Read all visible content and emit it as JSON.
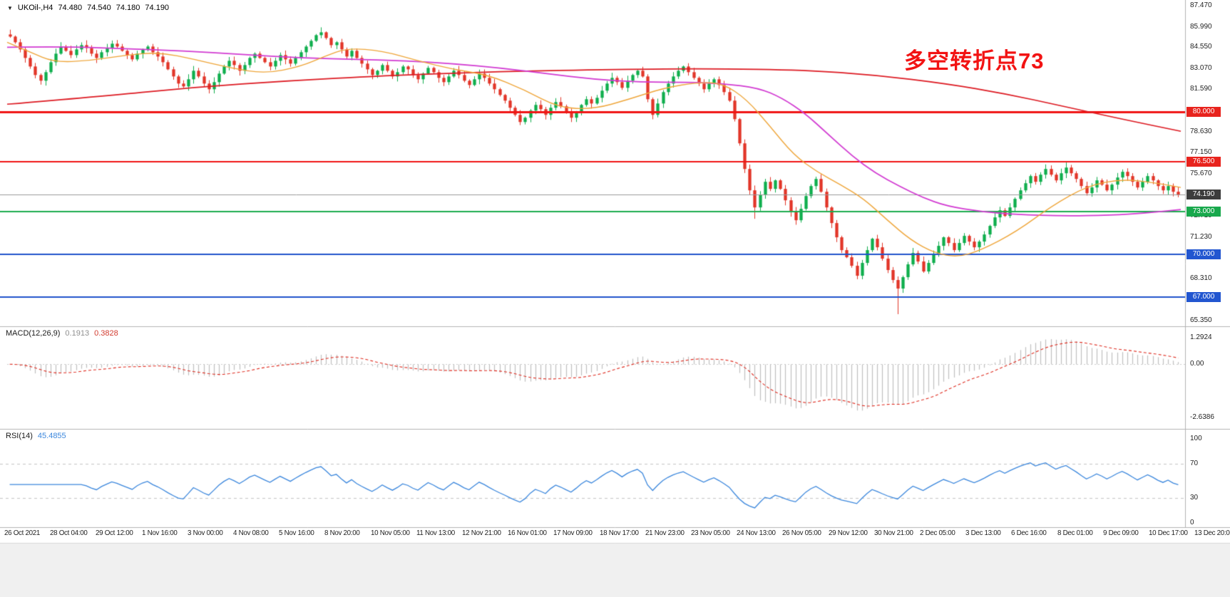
{
  "symbol_bar": {
    "symbol": "UKOil-,H4",
    "open": "74.480",
    "high": "74.540",
    "low": "74.180",
    "close": "74.190"
  },
  "annotation": {
    "text": "多空转折点73",
    "color": "#f21313"
  },
  "colors": {
    "bull": "#0fae4d",
    "bear": "#e23528",
    "ma_slow": "#dd1a22",
    "ma_mid": "#d23bd2",
    "ma_fast": "#efa63a",
    "macd_hist": "#c0c0c0",
    "macd_signal": "#df2b1f",
    "rsi_line": "#3b87dd"
  },
  "price_axis": {
    "ticks": [
      {
        "label": "87.470",
        "value": 87.47
      },
      {
        "label": "85.990",
        "value": 85.99
      },
      {
        "label": "84.550",
        "value": 84.55
      },
      {
        "label": "83.070",
        "value": 83.07
      },
      {
        "label": "81.590",
        "value": 81.59
      },
      {
        "label": "78.630",
        "value": 78.63
      },
      {
        "label": "77.150",
        "value": 77.15
      },
      {
        "label": "75.670",
        "value": 75.67
      },
      {
        "label": "72.710",
        "value": 72.71
      },
      {
        "label": "71.230",
        "value": 71.23
      },
      {
        "label": "69.750",
        "value": 69.75
      },
      {
        "label": "68.310",
        "value": 68.31
      },
      {
        "label": "65.350",
        "value": 65.35
      }
    ],
    "badges": [
      {
        "label": "80.000",
        "value": 80.0,
        "bg": "#e8231d"
      },
      {
        "label": "76.500",
        "value": 76.5,
        "bg": "#e8231d"
      },
      {
        "label": "74.190",
        "value": 74.19,
        "bg": "#3c3c3c"
      },
      {
        "label": "73.000",
        "value": 73.0,
        "bg": "#18a84c"
      },
      {
        "label": "70.000",
        "value": 70.0,
        "bg": "#2256d0"
      },
      {
        "label": "67.000",
        "value": 67.0,
        "bg": "#2256d0"
      }
    ]
  },
  "macd_panel": {
    "label": "MACD(12,26,9)",
    "value_main": "0.1913",
    "value_signal": "0.3828",
    "scale": [
      {
        "label": "1.2924",
        "value": 1.2924
      },
      {
        "label": "0.00",
        "value": 0
      },
      {
        "label": "-2.6386",
        "value": -2.6386
      }
    ]
  },
  "rsi_panel": {
    "label": "RSI(14)",
    "value": "45.4855",
    "scale": [
      {
        "label": "100",
        "value": 100
      },
      {
        "label": "70",
        "value": 70
      },
      {
        "label": "30",
        "value": 30
      },
      {
        "label": "0",
        "value": 0
      }
    ]
  },
  "time_axis": {
    "labels": [
      "26 Oct 2021",
      "28 Oct 04:00",
      "29 Oct 12:00",
      "1 Nov 16:00",
      "3 Nov 00:00",
      "4 Nov 08:00",
      "5 Nov 16:00",
      "8 Nov 20:00",
      "10 Nov 05:00",
      "11 Nov 13:00",
      "12 Nov 21:00",
      "16 Nov 01:00",
      "17 Nov 09:00",
      "18 Nov 17:00",
      "21 Nov 23:00",
      "23 Nov 05:00",
      "24 Nov 13:00",
      "26 Nov 05:00",
      "29 Nov 12:00",
      "30 Nov 21:00",
      "2 Dec 05:00",
      "3 Dec 13:00",
      "6 Dec 16:00",
      "8 Dec 01:00",
      "9 Dec 09:00",
      "10 Dec 17:00",
      "13 Dec 20:00"
    ]
  },
  "chart_data": [
    {
      "type": "candlestick",
      "name": "price",
      "symbol": "UKOil",
      "timeframe": "H4",
      "current_ohlc": [
        74.48,
        74.54,
        74.18,
        74.19
      ],
      "price_range": [
        65.35,
        87.47
      ],
      "first_open": 85.45,
      "closes": [
        85.3,
        84.9,
        84.4,
        83.8,
        83.2,
        82.6,
        82.2,
        82.8,
        83.5,
        84.1,
        84.6,
        84.3,
        84.0,
        84.4,
        84.7,
        84.5,
        84.1,
        83.8,
        84.2,
        84.5,
        84.8,
        84.6,
        84.3,
        84.0,
        83.7,
        84.1,
        84.4,
        84.6,
        84.2,
        83.9,
        83.5,
        83.0,
        82.5,
        82.0,
        81.8,
        82.3,
        82.9,
        82.5,
        82.0,
        81.6,
        82.1,
        82.7,
        83.2,
        83.6,
        83.3,
        82.9,
        83.3,
        83.8,
        84.1,
        83.8,
        83.5,
        83.2,
        83.6,
        84.0,
        83.7,
        83.4,
        83.8,
        84.2,
        84.6,
        85.0,
        85.4,
        85.6,
        85.2,
        84.7,
        84.9,
        84.4,
        83.9,
        84.3,
        83.8,
        83.4,
        83.0,
        82.6,
        82.9,
        83.3,
        82.9,
        82.5,
        82.8,
        83.2,
        83.0,
        82.6,
        82.3,
        82.7,
        83.1,
        82.8,
        82.4,
        82.1,
        82.5,
        82.9,
        82.6,
        82.2,
        81.9,
        82.3,
        82.7,
        82.4,
        82.0,
        81.6,
        81.2,
        80.8,
        80.3,
        79.8,
        79.3,
        79.6,
        80.1,
        80.5,
        80.2,
        79.8,
        80.3,
        80.7,
        80.4,
        80.0,
        79.6,
        80.0,
        80.5,
        80.9,
        80.6,
        81.0,
        81.5,
        82.0,
        82.4,
        82.1,
        81.7,
        82.2,
        82.6,
        82.9,
        82.5,
        80.9,
        79.8,
        80.6,
        81.4,
        82.0,
        82.5,
        82.9,
        83.2,
        82.8,
        82.4,
        82.0,
        81.6,
        82.0,
        82.3,
        81.9,
        81.4,
        80.8,
        79.5,
        77.8,
        76.0,
        74.5,
        73.3,
        74.2,
        75.1,
        74.6,
        75.2,
        74.6,
        73.8,
        73.0,
        72.4,
        73.2,
        74.1,
        74.8,
        75.3,
        74.4,
        73.3,
        72.2,
        71.2,
        70.3,
        69.8,
        69.2,
        68.5,
        69.4,
        70.3,
        71.1,
        70.5,
        69.7,
        68.9,
        68.2,
        67.6,
        68.4,
        69.3,
        70.1,
        69.5,
        68.8,
        69.4,
        70.0,
        70.6,
        71.2,
        70.8,
        70.3,
        70.8,
        71.3,
        70.9,
        70.5,
        70.9,
        71.4,
        72.0,
        72.6,
        73.1,
        72.7,
        73.3,
        73.9,
        74.5,
        75.0,
        75.5,
        75.1,
        75.6,
        76.0,
        75.6,
        75.2,
        75.7,
        76.1,
        75.7,
        75.3,
        74.8,
        74.3,
        74.7,
        75.2,
        74.9,
        74.5,
        74.9,
        75.4,
        75.8,
        75.5,
        75.1,
        74.7,
        75.1,
        75.5,
        75.2,
        74.8,
        74.5,
        74.8,
        74.4,
        74.19
      ],
      "high_overrides": {
        "61": 85.95
      },
      "low_overrides": {
        "146": 72.5,
        "174": 65.8
      },
      "horizontal_lines": [
        {
          "value": 80.0,
          "color": "#f01414",
          "width": 3
        },
        {
          "value": 76.5,
          "color": "#f01414",
          "width": 2
        },
        {
          "value": 74.19,
          "color": "#9a9a9a",
          "width": 1
        },
        {
          "value": 73.0,
          "color": "#1cab4e",
          "width": 2
        },
        {
          "value": 70.0,
          "color": "#2053cc",
          "width": 2
        },
        {
          "value": 67.0,
          "color": "#2053cc",
          "width": 2
        }
      ],
      "moving_averages": [
        {
          "name": "ma-slow-red",
          "color": "#dd1a22",
          "width": 1.7,
          "points": [
            [
              0,
              80.55
            ],
            [
              0.08,
              81.1
            ],
            [
              0.16,
              81.75
            ],
            [
              0.24,
              82.2
            ],
            [
              0.32,
              82.55
            ],
            [
              0.42,
              82.85
            ],
            [
              0.52,
              83.0
            ],
            [
              0.6,
              83.05
            ],
            [
              0.68,
              82.95
            ],
            [
              0.74,
              82.6
            ],
            [
              0.8,
              82.0
            ],
            [
              0.85,
              81.3
            ],
            [
              0.9,
              80.4
            ],
            [
              0.95,
              79.5
            ],
            [
              1,
              78.65
            ]
          ]
        },
        {
          "name": "ma-mid-magenta",
          "color": "#d23bd2",
          "width": 1.7,
          "points": [
            [
              0,
              84.55
            ],
            [
              0.05,
              84.6
            ],
            [
              0.1,
              84.45
            ],
            [
              0.15,
              84.3
            ],
            [
              0.2,
              84.05
            ],
            [
              0.25,
              83.8
            ],
            [
              0.3,
              83.7
            ],
            [
              0.34,
              83.6
            ],
            [
              0.38,
              83.4
            ],
            [
              0.42,
              83.1
            ],
            [
              0.46,
              82.7
            ],
            [
              0.5,
              82.3
            ],
            [
              0.54,
              82.1
            ],
            [
              0.58,
              82.1
            ],
            [
              0.61,
              82.0
            ],
            [
              0.64,
              81.7
            ],
            [
              0.66,
              81.0
            ],
            [
              0.68,
              79.9
            ],
            [
              0.7,
              78.4
            ],
            [
              0.72,
              76.9
            ],
            [
              0.74,
              75.7
            ],
            [
              0.76,
              74.8
            ],
            [
              0.78,
              74.0
            ],
            [
              0.8,
              73.4
            ],
            [
              0.83,
              73.0
            ],
            [
              0.86,
              72.8
            ],
            [
              0.9,
              72.7
            ],
            [
              0.94,
              72.75
            ],
            [
              0.97,
              72.9
            ],
            [
              1,
              73.15
            ]
          ]
        },
        {
          "name": "ma-fast-orange",
          "color": "#efa63a",
          "width": 1.4,
          "points": [
            [
              0,
              84.9
            ],
            [
              0.02,
              84.2
            ],
            [
              0.04,
              83.5
            ],
            [
              0.07,
              83.6
            ],
            [
              0.1,
              84.0
            ],
            [
              0.13,
              84.2
            ],
            [
              0.16,
              83.7
            ],
            [
              0.19,
              83.1
            ],
            [
              0.22,
              82.7
            ],
            [
              0.25,
              83.2
            ],
            [
              0.27,
              83.9
            ],
            [
              0.29,
              84.5
            ],
            [
              0.32,
              84.3
            ],
            [
              0.35,
              83.6
            ],
            [
              0.38,
              83.0
            ],
            [
              0.41,
              82.6
            ],
            [
              0.44,
              81.6
            ],
            [
              0.47,
              80.3
            ],
            [
              0.5,
              80.2
            ],
            [
              0.53,
              80.9
            ],
            [
              0.56,
              81.7
            ],
            [
              0.59,
              82.1
            ],
            [
              0.61,
              82.0
            ],
            [
              0.63,
              80.9
            ],
            [
              0.65,
              79.0
            ],
            [
              0.67,
              77.0
            ],
            [
              0.69,
              75.8
            ],
            [
              0.71,
              74.9
            ],
            [
              0.73,
              73.9
            ],
            [
              0.75,
              72.4
            ],
            [
              0.77,
              71.0
            ],
            [
              0.79,
              70.1
            ],
            [
              0.81,
              69.8
            ],
            [
              0.83,
              70.3
            ],
            [
              0.86,
              71.6
            ],
            [
              0.89,
              73.4
            ],
            [
              0.92,
              74.8
            ],
            [
              0.95,
              75.3
            ],
            [
              0.98,
              75.0
            ],
            [
              1,
              74.7
            ]
          ]
        }
      ]
    },
    {
      "type": "bar",
      "name": "macd",
      "params": [
        12,
        26,
        9
      ],
      "current": [
        0.1913,
        0.3828
      ],
      "axis_values": [
        1.2924,
        0,
        -2.6386
      ],
      "derived_from": "price.closes"
    },
    {
      "type": "line",
      "name": "rsi",
      "period": 14,
      "current": 45.4855,
      "range": [
        0,
        100
      ],
      "levels": [
        70,
        30
      ],
      "derived_from": "price.closes"
    }
  ]
}
